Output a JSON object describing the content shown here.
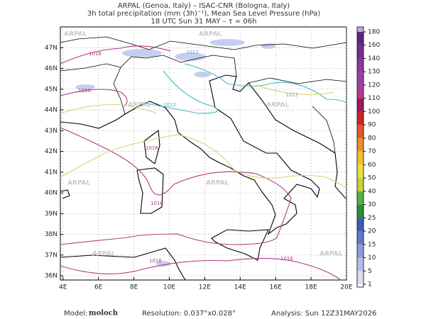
{
  "header": {
    "line1": "ARPAL (Genoa, Italy)  –  ISAC-CNR (Bologna, Italy)",
    "line2": "3h total precipitation (mm (3h)⁻¹), Mean Sea Level Pressure (hPa)",
    "line3": "18 UTC Sun 31 MAY  –  τ = 06h"
  },
  "map": {
    "xlim": [
      3.85,
      20
    ],
    "ylim": [
      35.8,
      48
    ],
    "xticks": [
      {
        "value": 4,
        "label": "4E"
      },
      {
        "value": 6,
        "label": "6E"
      },
      {
        "value": 8,
        "label": "8E"
      },
      {
        "value": 10,
        "label": "10E"
      },
      {
        "value": 12,
        "label": "12E"
      },
      {
        "value": 14,
        "label": "14E"
      },
      {
        "value": 16,
        "label": "16E"
      },
      {
        "value": 18,
        "label": "18E"
      },
      {
        "value": 20,
        "label": "20E"
      }
    ],
    "yticks": [
      {
        "value": 36,
        "label": "36N"
      },
      {
        "value": 37,
        "label": "37N"
      },
      {
        "value": 38,
        "label": "38N"
      },
      {
        "value": 39,
        "label": "39N"
      },
      {
        "value": 40,
        "label": "40N"
      },
      {
        "value": 41,
        "label": "41N"
      },
      {
        "value": 42,
        "label": "42N"
      },
      {
        "value": 43,
        "label": "43N"
      },
      {
        "value": 44,
        "label": "44N"
      },
      {
        "value": 45,
        "label": "45N"
      },
      {
        "value": 46,
        "label": "46N"
      },
      {
        "value": 47,
        "label": "47N"
      }
    ],
    "grid": true,
    "isobars": [
      1012,
      1016
    ],
    "watermark": "ARPAL"
  },
  "colorbar": {
    "ticks": [
      1,
      5,
      10,
      15,
      20,
      25,
      30,
      40,
      50,
      60,
      70,
      80,
      90,
      100,
      110,
      120,
      130,
      140,
      160,
      180
    ],
    "colors": [
      "#dadef2",
      "#b6bee8",
      "#8e9cda",
      "#6478c8",
      "#3e5cb8",
      "#2e8b3a",
      "#5caf3e",
      "#c8d040",
      "#e8e040",
      "#f0c030",
      "#e89030",
      "#e05a28",
      "#c82828",
      "#a01858",
      "#b03c98",
      "#9c40a8",
      "#8838a0",
      "#703090",
      "#5c2880",
      "#c9a6d8"
    ]
  },
  "footer": {
    "model_label": "Model:",
    "model": "moloch",
    "resolution": "Resolution: 0.037°x0.028°",
    "analysis": "Analysis: Sun 12Z31MAY2026"
  }
}
